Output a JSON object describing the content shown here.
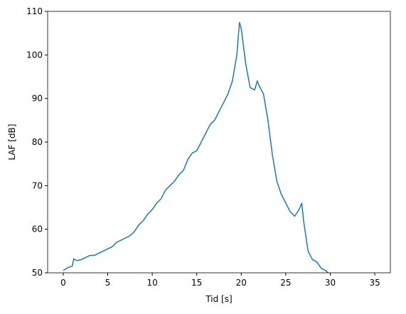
{
  "chart_data": {
    "type": "line",
    "xlabel": "Tid [s]",
    "ylabel": "LAF [dB]",
    "x": [
      0,
      0.5,
      1,
      1.2,
      1.5,
      2,
      2.5,
      3,
      3.5,
      4,
      4.5,
      5,
      5.5,
      6,
      6.5,
      7,
      7.5,
      8,
      8.5,
      9,
      9.5,
      10,
      10.5,
      11,
      11.5,
      12,
      12.5,
      13,
      13.5,
      14,
      14.5,
      15,
      15.5,
      16,
      16.5,
      17,
      17.5,
      18,
      18.5,
      19,
      19.5,
      19.8,
      20,
      20.5,
      21,
      21.5,
      21.8,
      22,
      22.5,
      23,
      23.5,
      24,
      24.5,
      25,
      25.5,
      26,
      26.5,
      26.8,
      27,
      27.5,
      28,
      28.5,
      29,
      29.5,
      30
    ],
    "series": [
      {
        "color": "#1f77b4",
        "values": [
          50.5,
          51.2,
          51.5,
          53.2,
          52.8,
          53,
          53.5,
          54,
          54,
          54.5,
          55,
          55.5,
          56,
          57,
          57.5,
          58,
          58.5,
          59.5,
          61,
          62,
          63.5,
          64.5,
          66,
          67,
          69,
          70,
          71,
          72.5,
          73.5,
          76,
          77.5,
          78,
          80,
          82,
          84,
          85,
          87,
          89,
          91,
          94,
          100,
          107.5,
          106,
          98,
          92.5,
          92,
          94,
          93,
          91,
          85,
          77,
          71,
          68,
          66,
          64,
          63,
          64.5,
          66,
          62,
          55,
          53,
          52.5,
          51,
          50.5,
          49.5
        ]
      }
    ],
    "xlim": [
      -1.75,
      36.75
    ],
    "ylim": [
      50,
      110
    ],
    "xticks": [
      0,
      5,
      10,
      15,
      20,
      25,
      30,
      35
    ],
    "yticks": [
      50,
      60,
      70,
      80,
      90,
      100,
      110
    ]
  }
}
